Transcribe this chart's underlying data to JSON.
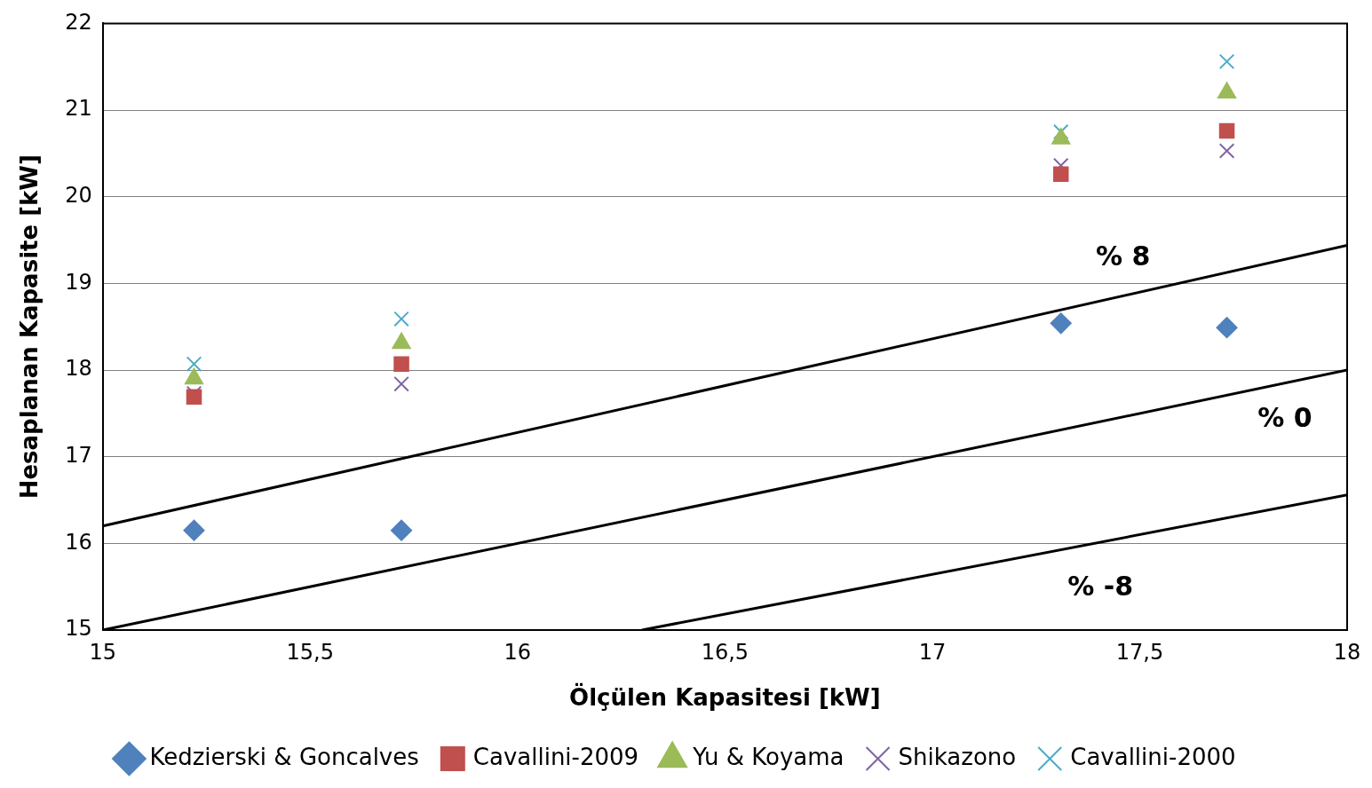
{
  "chart_data": {
    "type": "scatter",
    "xlabel": "Ölçülen Kapasitesi [kW]",
    "ylabel": "Hesaplanan Kapasite [kW]",
    "xlim": [
      15,
      18
    ],
    "ylim": [
      15,
      22
    ],
    "xticks": [
      15,
      {
        "value": 15.5,
        "label": "15,5"
      },
      16,
      {
        "value": 16.5,
        "label": "16,5"
      },
      17,
      {
        "value": 17.5,
        "label": "17,5"
      },
      18
    ],
    "yticks": [
      15,
      16,
      17,
      18,
      19,
      20,
      21,
      22
    ],
    "grid": "y",
    "legend": "bottom",
    "x": [
      15.22,
      15.72,
      17.31,
      17.71
    ],
    "series": [
      {
        "name": "Kedzierski & Goncalves",
        "color": "#4f81bd",
        "marker": "diamond",
        "values": [
          16.15,
          16.15,
          18.54,
          18.49
        ]
      },
      {
        "name": "Cavallini-2009",
        "color": "#c0504d",
        "marker": "square",
        "values": [
          17.69,
          18.07,
          20.26,
          20.76
        ]
      },
      {
        "name": "Yu & Koyama",
        "color": "#9bbb59",
        "marker": "triangle",
        "values": [
          17.9,
          18.31,
          20.67,
          21.2
        ]
      },
      {
        "name": "Shikazono",
        "color": "#8064a2",
        "marker": "cross",
        "values": [
          17.73,
          17.84,
          20.36,
          20.53
        ]
      },
      {
        "name": "Cavallini-2000",
        "color": "#4bacc6",
        "marker": "cross",
        "values": [
          18.07,
          18.59,
          20.75,
          21.56
        ]
      },
      {
        "type": "line",
        "name": "% 8",
        "color": "#000000",
        "marker": "none",
        "x": [
          15,
          18
        ],
        "values": [
          16.2,
          19.44
        ]
      },
      {
        "type": "line",
        "name": "% 0",
        "color": "#000000",
        "marker": "none",
        "x": [
          15,
          18
        ],
        "values": [
          15,
          18
        ]
      },
      {
        "type": "line",
        "name": "% -8",
        "color": "#000000",
        "marker": "none",
        "x": [
          16.3,
          18
        ],
        "values": [
          15,
          16.56
        ]
      }
    ]
  }
}
